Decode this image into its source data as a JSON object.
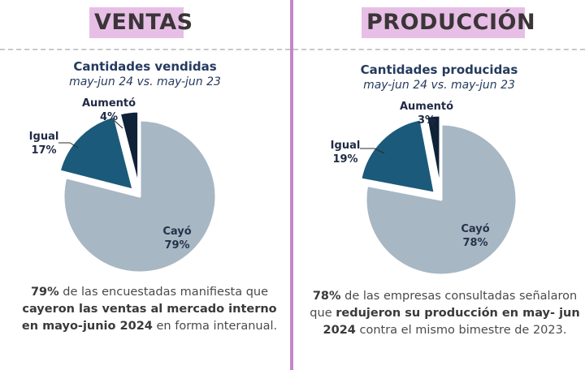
{
  "ventas": {
    "section_title": "VENTAS",
    "chart_title": "Cantidades vendidas",
    "chart_subtitle": "may-jun 24 vs. may-jun 23",
    "summary": {
      "p1": "79%",
      "p2": " de las encuestadas manifiesta que ",
      "p3": "cayeron las ventas al mercado interno en mayo-junio 2024",
      "p4": " en forma interanual."
    }
  },
  "produccion": {
    "section_title": "PRODUCCIÓN",
    "chart_title": "Cantidades producidas",
    "chart_subtitle": "may-jun 24 vs. may-jun 23",
    "summary": {
      "p1": "78%",
      "p2": " de las empresas consultadas señalaron que ",
      "p3": "redujeron su producción en may- jun 2024",
      "p4": " contra el mismo bimestre de 2023."
    }
  },
  "colors": {
    "cayo": "#a7b7c4",
    "igual": "#1b5a7a",
    "aumento": "#0f2238",
    "divider": "#c586c7",
    "title_bg": "#e7bfe6"
  },
  "chart_data": [
    {
      "type": "pie",
      "title": "Cantidades vendidas",
      "subtitle": "may-jun 24 vs. may-jun 23",
      "categories": [
        "Cayó",
        "Igual",
        "Aumentó"
      ],
      "values": [
        79,
        17,
        4
      ],
      "value_labels": [
        "79%",
        "17%",
        "4%"
      ]
    },
    {
      "type": "pie",
      "title": "Cantidades producidas",
      "subtitle": "may-jun 24 vs. may-jun 23",
      "categories": [
        "Cayó",
        "Igual",
        "Aumentó"
      ],
      "values": [
        78,
        19,
        3
      ],
      "value_labels": [
        "78%",
        "19%",
        "3%"
      ]
    }
  ]
}
